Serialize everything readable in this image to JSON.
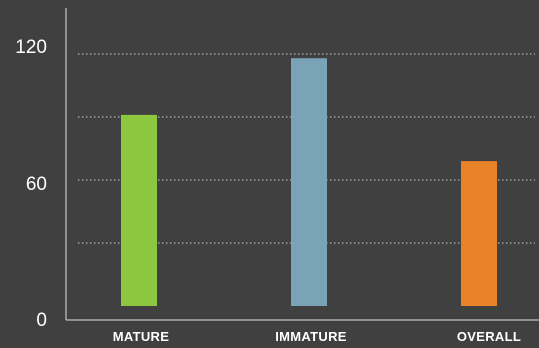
{
  "chart_data": {
    "type": "bar",
    "categories": [
      "MATURE",
      "IMMATURE",
      "OVERALL"
    ],
    "values": [
      91,
      118,
      69
    ],
    "colors": [
      "#8dc63f",
      "#7ba3b8",
      "#e8832a"
    ],
    "yticks": [
      0,
      60,
      120
    ],
    "ylim": [
      0,
      140
    ],
    "grid": true,
    "grid_style": "dotted",
    "legend": false
  },
  "colors": {
    "background": "#404040",
    "axis": "#e0e0e0",
    "grid": "#cfcfcf",
    "text": "#ffffff"
  }
}
